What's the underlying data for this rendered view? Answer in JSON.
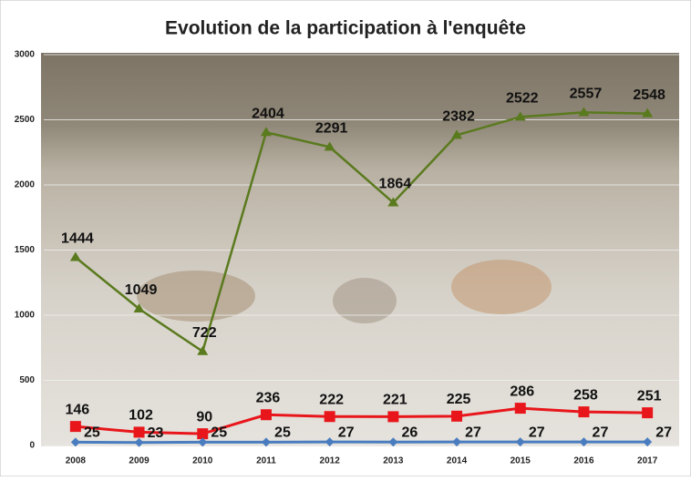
{
  "chart_data": {
    "type": "line",
    "title": "Evolution de la participation à l'enquête",
    "categories": [
      "2008",
      "2009",
      "2010",
      "2011",
      "2012",
      "2013",
      "2014",
      "2015",
      "2016",
      "2017"
    ],
    "series": [
      {
        "color": "#5a7a1e",
        "values": [
          1444,
          1049,
          722,
          2404,
          2291,
          1864,
          2382,
          2522,
          2557,
          2548
        ]
      },
      {
        "color": "#e8161b",
        "values": [
          146,
          102,
          90,
          236,
          222,
          221,
          225,
          286,
          258,
          251
        ]
      },
      {
        "color": "#4a7dbf",
        "values": [
          25,
          23,
          25,
          25,
          27,
          26,
          27,
          27,
          27,
          27
        ]
      }
    ],
    "ylim": [
      0,
      3000
    ],
    "yticks": [
      0,
      500,
      1000,
      1500,
      2000,
      2500,
      3000
    ],
    "grid": true
  }
}
